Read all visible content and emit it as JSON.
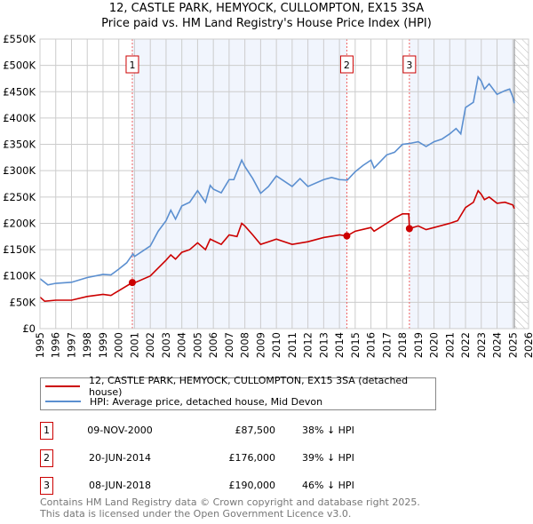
{
  "chart_data": {
    "type": "line",
    "title": "12, CASTLE PARK, HEMYOCK, CULLOMPTON, EX15 3SA",
    "subtitle": "Price paid vs. HM Land Registry's House Price Index (HPI)",
    "xlim": [
      1995,
      2026
    ],
    "ylim": [
      0,
      550000
    ],
    "x_ticks": [
      "1995",
      "1996",
      "1997",
      "1998",
      "1999",
      "2000",
      "2001",
      "2002",
      "2003",
      "2004",
      "2005",
      "2006",
      "2007",
      "2008",
      "2009",
      "2010",
      "2011",
      "2012",
      "2013",
      "2014",
      "2015",
      "2016",
      "2017",
      "2018",
      "2019",
      "2020",
      "2021",
      "2022",
      "2023",
      "2024",
      "2025",
      "2026"
    ],
    "y_ticks": [
      {
        "v": 0,
        "label": "£0"
      },
      {
        "v": 50000,
        "label": "£50K"
      },
      {
        "v": 100000,
        "label": "£100K"
      },
      {
        "v": 150000,
        "label": "£150K"
      },
      {
        "v": 200000,
        "label": "£200K"
      },
      {
        "v": 250000,
        "label": "£250K"
      },
      {
        "v": 300000,
        "label": "£300K"
      },
      {
        "v": 350000,
        "label": "£350K"
      },
      {
        "v": 400000,
        "label": "£400K"
      },
      {
        "v": 450000,
        "label": "£450K"
      },
      {
        "v": 500000,
        "label": "£500K"
      },
      {
        "v": 550000,
        "label": "£550K"
      }
    ],
    "grid": true,
    "shaded_ranges": [
      [
        2000.86,
        2014.47
      ],
      [
        2018.44,
        2025.1
      ]
    ],
    "data_end": 2025.1,
    "series": [
      {
        "name": "12, CASTLE PARK, HEMYOCK, CULLOMPTON, EX15 3SA (detached house)",
        "color": "#cc0000",
        "x": [
          1995,
          1995.3,
          1996,
          1997,
          1998,
          1999,
          1999.5,
          2000,
          2000.86,
          2001,
          2002,
          2002.5,
          2003,
          2003.3,
          2003.6,
          2004,
          2004.5,
          2005,
          2005.5,
          2005.8,
          2006.5,
          2007,
          2007.5,
          2007.8,
          2008,
          2008.5,
          2009,
          2009.5,
          2010,
          2011,
          2012,
          2013,
          2014,
          2014.47,
          2015,
          2016,
          2016.2,
          2017,
          2017.5,
          2018,
          2018.4,
          2018.44,
          2019,
          2019.5,
          2020,
          2021,
          2021.5,
          2022,
          2022.5,
          2022.8,
          2023,
          2023.2,
          2023.5,
          2024,
          2024.5,
          2025,
          2025.1
        ],
        "y": [
          60000,
          52000,
          54000,
          54000,
          61000,
          65000,
          63000,
          72000,
          87500,
          87000,
          100000,
          115000,
          130000,
          140000,
          132000,
          145000,
          150000,
          163000,
          150000,
          170000,
          160000,
          178000,
          175000,
          200000,
          195000,
          178000,
          160000,
          165000,
          170000,
          160000,
          165000,
          173000,
          178000,
          176000,
          185000,
          192000,
          185000,
          200000,
          210000,
          218000,
          218000,
          190000,
          195000,
          188000,
          192000,
          200000,
          205000,
          230000,
          240000,
          262000,
          255000,
          245000,
          250000,
          238000,
          240000,
          235000,
          228000
        ]
      },
      {
        "name": "HPI: Average price, detached house, Mid Devon",
        "color": "#5b8fd0",
        "x": [
          1995,
          1995.5,
          1996,
          1997,
          1998,
          1999,
          1999.5,
          2000,
          2000.5,
          2000.9,
          2001,
          2002,
          2002.5,
          2003,
          2003.3,
          2003.6,
          2004,
          2004.5,
          2005,
          2005.5,
          2005.8,
          2006,
          2006.5,
          2007,
          2007.3,
          2007.8,
          2008,
          2008.5,
          2009,
          2009.5,
          2010,
          2011,
          2011.5,
          2012,
          2013,
          2013.5,
          2014,
          2014.5,
          2015,
          2015.5,
          2016,
          2016.2,
          2017,
          2017.5,
          2018,
          2018.5,
          2019,
          2019.5,
          2020,
          2020.5,
          2021,
          2021.4,
          2021.7,
          2022,
          2022.5,
          2022.8,
          2023,
          2023.2,
          2023.5,
          2024,
          2024.5,
          2024.8,
          2025,
          2025.1
        ],
        "y": [
          95000,
          83000,
          86000,
          88000,
          97000,
          103000,
          102000,
          113000,
          125000,
          142000,
          137000,
          157000,
          185000,
          205000,
          225000,
          208000,
          233000,
          240000,
          262000,
          240000,
          272000,
          265000,
          258000,
          283000,
          283000,
          320000,
          308000,
          285000,
          257000,
          270000,
          290000,
          270000,
          285000,
          270000,
          283000,
          287000,
          283000,
          282000,
          298000,
          310000,
          320000,
          305000,
          330000,
          335000,
          350000,
          352000,
          355000,
          346000,
          355000,
          360000,
          370000,
          380000,
          370000,
          420000,
          430000,
          478000,
          470000,
          455000,
          465000,
          445000,
          452000,
          455000,
          440000,
          428000
        ]
      }
    ],
    "sales": [
      {
        "num": "1",
        "x": 2000.86,
        "y": 87500,
        "date": "09-NOV-2000",
        "price": "£87,500",
        "hpi": "38% ↓ HPI"
      },
      {
        "num": "2",
        "x": 2014.47,
        "y": 176000,
        "date": "20-JUN-2014",
        "price": "£176,000",
        "hpi": "39% ↓ HPI"
      },
      {
        "num": "3",
        "x": 2018.44,
        "y": 190000,
        "date": "08-JUN-2018",
        "price": "£190,000",
        "hpi": "46% ↓ HPI"
      }
    ],
    "legend_position": "bottom"
  },
  "footer": {
    "line1": "Contains HM Land Registry data © Crown copyright and database right 2025.",
    "line2": "This data is licensed under the Open Government Licence v3.0."
  }
}
